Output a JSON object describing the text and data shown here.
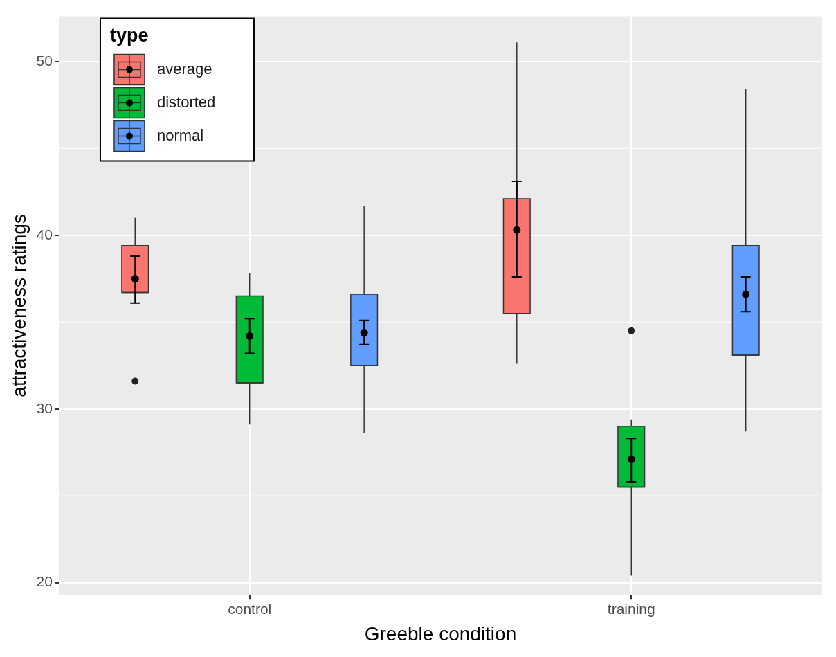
{
  "chart_data": {
    "type": "box",
    "xlabel": "Greeble condition",
    "ylabel": "attractiveness ratings",
    "legend_title": "type",
    "categories": [
      "control",
      "training"
    ],
    "ylim": [
      19.3,
      52.6
    ],
    "yticks": [
      20,
      30,
      40,
      50
    ],
    "grid": true,
    "legend": "top left",
    "marker": "circle",
    "series": [
      {
        "name": "average",
        "color": "#f8766d",
        "boxes": [
          {
            "low": 36.7,
            "q1": 36.7,
            "median": 36.7,
            "q3": 39.4,
            "high": 41.0,
            "outliers": [
              31.6
            ]
          },
          {
            "low": 32.6,
            "q1": 35.5,
            "median": 35.5,
            "q3": 42.1,
            "high": 51.1
          }
        ]
      },
      {
        "name": "distorted",
        "color": "#00ba38",
        "boxes": [
          {
            "low": 29.1,
            "q1": 31.5,
            "median": 31.5,
            "q3": 36.5,
            "high": 37.8
          },
          {
            "low": 20.4,
            "q1": 25.5,
            "median": 25.5,
            "q3": 29.0,
            "high": 29.4,
            "outliers": [
              34.5
            ]
          }
        ]
      },
      {
        "name": "normal",
        "color": "#619cff",
        "boxes": [
          {
            "low": 28.6,
            "q1": 32.5,
            "median": 32.5,
            "q3": 36.6,
            "high": 41.7
          },
          {
            "low": 28.7,
            "q1": 33.1,
            "median": 33.1,
            "q3": 39.4,
            "high": 48.4
          }
        ]
      },
      {
        "type": "scatter",
        "color": "#000000",
        "x": [
          "control",
          "training"
        ],
        "values": [
          37.5,
          40.3
        ],
        "errors": [
          [
            36.1,
            38.8
          ],
          [
            37.6,
            43.1
          ]
        ]
      },
      {
        "type": "scatter",
        "color": "#000000",
        "x": [
          "control",
          "training"
        ],
        "values": [
          34.2,
          27.1
        ],
        "errors": [
          [
            33.2,
            35.2
          ],
          [
            25.8,
            28.3
          ]
        ]
      },
      {
        "type": "scatter",
        "color": "#000000",
        "x": [
          "control",
          "training"
        ],
        "values": [
          34.4,
          36.6
        ],
        "errors": [
          [
            33.7,
            35.1
          ],
          [
            35.6,
            37.6
          ]
        ]
      }
    ]
  }
}
